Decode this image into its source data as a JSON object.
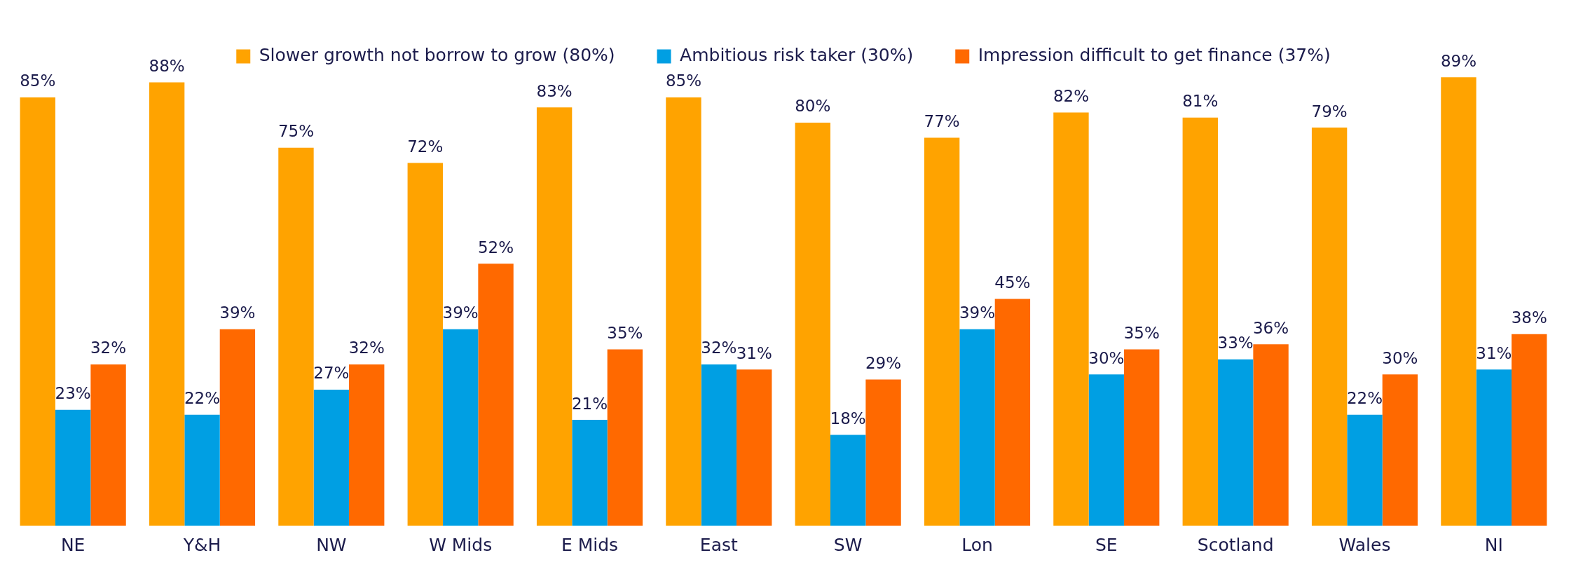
{
  "chart_data": {
    "type": "bar",
    "categories": [
      "NE",
      "Y&H",
      "NW",
      "W Mids",
      "E Mids",
      "East",
      "SW",
      "Lon",
      "SE",
      "Scotland",
      "Wales",
      "NI"
    ],
    "series": [
      {
        "name": "Slower growth not borrow to grow (80%)",
        "color": "#ffa300",
        "values": [
          85,
          88,
          75,
          72,
          83,
          85,
          80,
          77,
          82,
          81,
          79,
          89
        ],
        "value_labels": [
          "85%",
          "88%",
          "75%",
          "72%",
          "83%",
          "85%",
          "80%",
          "77%",
          "82%",
          "81%",
          "79%",
          "89%"
        ]
      },
      {
        "name": "Ambitious risk taker (30%)",
        "color": "#009fe3",
        "values": [
          23,
          22,
          27,
          39,
          21,
          32,
          18,
          39,
          30,
          33,
          22,
          31
        ],
        "value_labels": [
          "23%",
          "22%",
          "27%",
          "39%",
          "21%",
          "32%",
          "18%",
          "39%",
          "30%",
          "33%",
          "22%",
          "31%"
        ]
      },
      {
        "name": "Impression difficult to get finance (37%)",
        "color": "#ff6900",
        "values": [
          32,
          39,
          32,
          52,
          35,
          31,
          29,
          45,
          35,
          36,
          30,
          38
        ],
        "value_labels": [
          "32%",
          "39%",
          "32%",
          "52%",
          "35%",
          "31%",
          "29%",
          "45%",
          "35%",
          "36%",
          "30%",
          "38%"
        ]
      }
    ],
    "legend": "top",
    "grid": false,
    "tick_labels": "x"
  }
}
